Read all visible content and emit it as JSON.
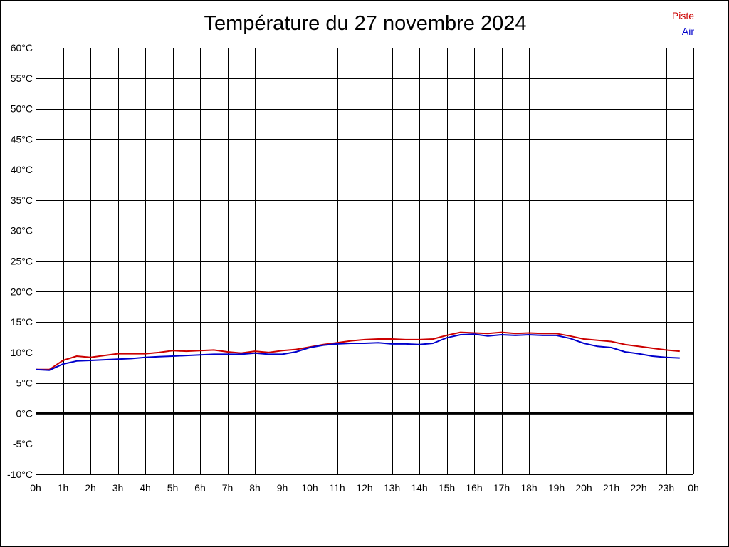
{
  "chart_data": {
    "type": "line",
    "title": "Température du 27 novembre 2024",
    "xlabel": "",
    "ylabel": "",
    "x_tick_labels": [
      "0h",
      "1h",
      "2h",
      "3h",
      "4h",
      "5h",
      "6h",
      "7h",
      "8h",
      "9h",
      "10h",
      "11h",
      "12h",
      "13h",
      "14h",
      "15h",
      "16h",
      "17h",
      "18h",
      "19h",
      "20h",
      "21h",
      "22h",
      "23h",
      "0h"
    ],
    "y_tick_labels": [
      "60°C",
      "55°C",
      "50°C",
      "45°C",
      "40°C",
      "35°C",
      "30°C",
      "25°C",
      "20°C",
      "15°C",
      "10°C",
      "5°C",
      "0°C",
      "-5°C",
      "-10°C"
    ],
    "xlim": [
      0,
      24
    ],
    "ylim": [
      -10,
      60
    ],
    "grid": true,
    "legend_position": "top-right",
    "zero_line": 0,
    "series": [
      {
        "name": "Piste",
        "color": "#cc0000",
        "x": [
          0,
          0.5,
          1,
          1.5,
          2,
          2.5,
          3,
          3.5,
          4,
          4.5,
          5,
          5.5,
          6,
          6.5,
          7,
          7.5,
          8,
          8.5,
          9,
          9.5,
          10,
          10.5,
          11,
          11.5,
          12,
          12.5,
          13,
          13.5,
          14,
          14.5,
          15,
          15.5,
          16,
          16.5,
          17,
          17.5,
          18,
          18.5,
          19,
          19.5,
          20,
          20.5,
          21,
          21.5,
          22,
          22.5,
          23,
          23.5
        ],
        "values": [
          7.2,
          7.2,
          8.7,
          9.4,
          9.2,
          9.5,
          9.8,
          9.8,
          9.8,
          10.0,
          10.3,
          10.2,
          10.3,
          10.4,
          10.1,
          9.9,
          10.2,
          10.0,
          10.3,
          10.5,
          10.9,
          11.3,
          11.6,
          11.9,
          12.1,
          12.2,
          12.2,
          12.1,
          12.1,
          12.2,
          12.8,
          13.3,
          13.2,
          13.1,
          13.3,
          13.1,
          13.2,
          13.1,
          13.1,
          12.7,
          12.2,
          12.0,
          11.8,
          11.3,
          11.0,
          10.7,
          10.4,
          10.2
        ]
      },
      {
        "name": "Air",
        "color": "#0000cc",
        "x": [
          0,
          0.5,
          1,
          1.5,
          2,
          2.5,
          3,
          3.5,
          4,
          4.5,
          5,
          5.5,
          6,
          6.5,
          7,
          7.5,
          8,
          8.5,
          9,
          9.5,
          10,
          10.5,
          11,
          11.5,
          12,
          12.5,
          13,
          13.5,
          14,
          14.5,
          15,
          15.5,
          16,
          16.5,
          17,
          17.5,
          18,
          18.5,
          19,
          19.5,
          20,
          20.5,
          21,
          21.5,
          22,
          22.5,
          23,
          23.5
        ],
        "values": [
          7.2,
          7.1,
          8.1,
          8.6,
          8.7,
          8.8,
          8.9,
          9.0,
          9.2,
          9.3,
          9.4,
          9.5,
          9.6,
          9.7,
          9.7,
          9.7,
          9.9,
          9.7,
          9.7,
          10.1,
          10.8,
          11.2,
          11.4,
          11.5,
          11.5,
          11.6,
          11.4,
          11.4,
          11.3,
          11.5,
          12.4,
          12.9,
          13.0,
          12.7,
          12.9,
          12.8,
          12.9,
          12.8,
          12.8,
          12.3,
          11.5,
          11.0,
          10.8,
          10.1,
          9.8,
          9.4,
          9.2,
          9.1
        ]
      }
    ]
  }
}
